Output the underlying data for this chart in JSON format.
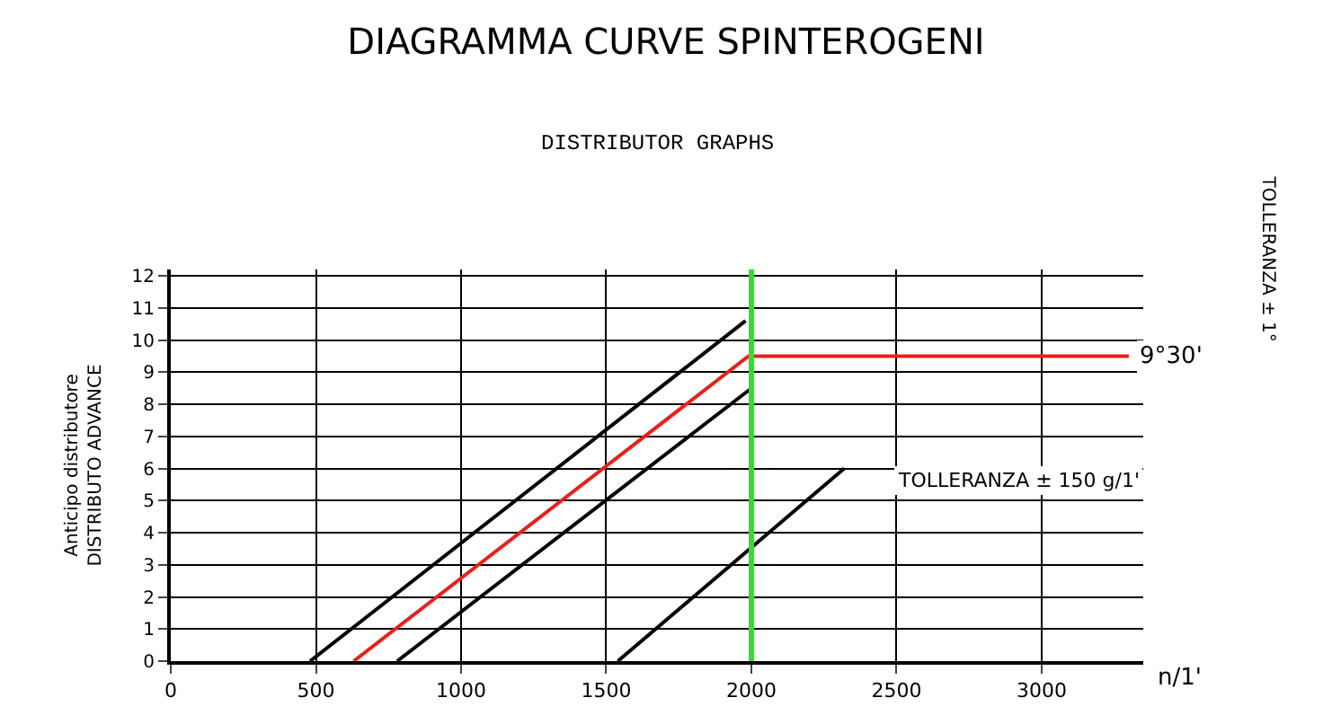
{
  "chart_data": {
    "type": "line",
    "title": "DIAGRAMMA CURVE SPINTEROGENI",
    "subtitle": "DISTRIBUTOR GRAPHS",
    "xlabel": "n/1'",
    "ylabel": "Anticipo distributore\nDISTRIBUTO ADVANCE",
    "series": [
      {
        "color": "#000000",
        "x": [
          480,
          1980
        ],
        "values": [
          0,
          10.6
        ]
      },
      {
        "color": "#e8201c",
        "x": [
          630,
          1990,
          3300
        ],
        "values": [
          0,
          9.5,
          9.5
        ]
      },
      {
        "color": "#000000",
        "x": [
          780,
          2000
        ],
        "values": [
          0,
          8.5
        ]
      },
      {
        "color": "#000000",
        "x": [
          1540,
          2320
        ],
        "values": [
          0,
          6
        ]
      }
    ],
    "xlim": [
      0,
      3350
    ],
    "xticks": [
      0,
      500,
      1000,
      1500,
      2000,
      2500,
      3000
    ],
    "ylim": [
      0,
      12.2
    ],
    "yticks": [
      0,
      1,
      2,
      3,
      4,
      5,
      6,
      7,
      8,
      9,
      10,
      11,
      12
    ],
    "ref_lines": [
      {
        "axis": "x",
        "value": 2000,
        "color": "#2ee02e"
      }
    ],
    "annotations": [
      {
        "text": "9°30'",
        "x": 3300,
        "y": 9.5
      },
      "TOLLERANZA ± 150 g/1'",
      "TOLLERANZA ± 1°"
    ],
    "grid": true,
    "marker": "none",
    "line_style": "solid"
  }
}
